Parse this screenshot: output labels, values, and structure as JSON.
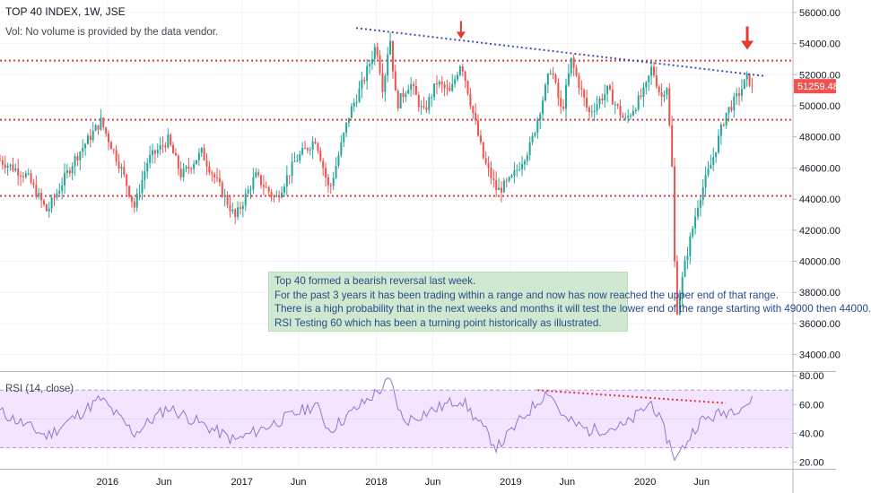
{
  "header": {
    "symbol_title": "TOP 40 INDEX, 1W, JSE",
    "volume_note": "Vol: No volume is provided by the data vendor."
  },
  "price_scale": {
    "ticks": [
      "56000.00",
      "54000.00",
      "52000.00",
      "50000.00",
      "48000.00",
      "46000.00",
      "44000.00",
      "42000.00",
      "40000.00",
      "38000.00",
      "36000.00",
      "34000.00"
    ],
    "last_price_label": "51259.48",
    "last_price": 51259.48,
    "colors": {
      "last_price_bg": "#ef5350"
    }
  },
  "rsi_panel": {
    "title": "RSI (14, close)",
    "ticks": [
      "80.00",
      "60.00",
      "40.00",
      "20.00"
    ],
    "band_upper": 70,
    "band_lower": 30,
    "colors": {
      "line": "#9575cd",
      "band": "#f3e5ff"
    }
  },
  "time_axis": {
    "labels": [
      "2016",
      "Jun",
      "2017",
      "Jun",
      "2018",
      "Jun",
      "2019",
      "Jun",
      "2020",
      "Jun"
    ]
  },
  "annotation": {
    "lines": [
      "Top 40 formed a bearish reversal last week.",
      "For the past 3 years it has been trading within a range and now has now reached the upper end of that range.",
      "There is a high probability that in the next weeks and months it will test the lower end of the range starting with 49000 then 44000.",
      "RSI Testing 60 which has been a turning point historically as illustrated."
    ]
  },
  "chart_data": {
    "type": "candlestick",
    "title": "TOP 40 INDEX, 1W, JSE",
    "ylim": [
      33000,
      56800
    ],
    "support_resistance_levels": [
      52900,
      49100,
      44200
    ],
    "descending_trendline": {
      "from": [
        2017.85,
        55000
      ],
      "to": [
        2020.9,
        51900
      ]
    },
    "rsi_trendline": {
      "from": [
        2019.2,
        70
      ],
      "to": [
        2020.6,
        61
      ]
    },
    "colors": {
      "up": "#26a69a",
      "down": "#ef5350",
      "levels": "#e53935",
      "trendline": "#3f51b5",
      "arrows": "#e53935"
    },
    "key_points": [
      {
        "t": 2015.2,
        "v": 46500
      },
      {
        "t": 2015.4,
        "v": 45500
      },
      {
        "t": 2015.55,
        "v": 43200
      },
      {
        "t": 2015.75,
        "v": 46500
      },
      {
        "t": 2015.95,
        "v": 49000
      },
      {
        "t": 2016.1,
        "v": 46000
      },
      {
        "t": 2016.2,
        "v": 43500
      },
      {
        "t": 2016.3,
        "v": 46500
      },
      {
        "t": 2016.45,
        "v": 47800
      },
      {
        "t": 2016.55,
        "v": 45500
      },
      {
        "t": 2016.7,
        "v": 47000
      },
      {
        "t": 2016.85,
        "v": 44500
      },
      {
        "t": 2016.95,
        "v": 42800
      },
      {
        "t": 2017.1,
        "v": 45500
      },
      {
        "t": 2017.25,
        "v": 44000
      },
      {
        "t": 2017.4,
        "v": 46500
      },
      {
        "t": 2017.55,
        "v": 47900
      },
      {
        "t": 2017.65,
        "v": 44500
      },
      {
        "t": 2017.8,
        "v": 49500
      },
      {
        "t": 2017.9,
        "v": 51500
      },
      {
        "t": 2018.0,
        "v": 54000
      },
      {
        "t": 2018.05,
        "v": 51000
      },
      {
        "t": 2018.1,
        "v": 54600
      },
      {
        "t": 2018.15,
        "v": 50000
      },
      {
        "t": 2018.25,
        "v": 51500
      },
      {
        "t": 2018.35,
        "v": 49500
      },
      {
        "t": 2018.45,
        "v": 51500
      },
      {
        "t": 2018.55,
        "v": 50800
      },
      {
        "t": 2018.63,
        "v": 52900
      },
      {
        "t": 2018.72,
        "v": 49500
      },
      {
        "t": 2018.8,
        "v": 46500
      },
      {
        "t": 2018.9,
        "v": 44500
      },
      {
        "t": 2019.0,
        "v": 45200
      },
      {
        "t": 2019.15,
        "v": 47500
      },
      {
        "t": 2019.3,
        "v": 52500
      },
      {
        "t": 2019.38,
        "v": 49500
      },
      {
        "t": 2019.45,
        "v": 52900
      },
      {
        "t": 2019.58,
        "v": 49500
      },
      {
        "t": 2019.72,
        "v": 51000
      },
      {
        "t": 2019.85,
        "v": 49000
      },
      {
        "t": 2020.0,
        "v": 51000
      },
      {
        "t": 2020.05,
        "v": 52500
      },
      {
        "t": 2020.12,
        "v": 50500
      },
      {
        "t": 2020.16,
        "v": 51500
      },
      {
        "t": 2020.2,
        "v": 46000
      },
      {
        "t": 2020.23,
        "v": 36500
      },
      {
        "t": 2020.3,
        "v": 40000
      },
      {
        "t": 2020.4,
        "v": 44000
      },
      {
        "t": 2020.5,
        "v": 46500
      },
      {
        "t": 2020.6,
        "v": 49500
      },
      {
        "t": 2020.68,
        "v": 50500
      },
      {
        "t": 2020.76,
        "v": 51800
      },
      {
        "t": 2020.8,
        "v": 51259
      }
    ],
    "rsi_key_points": [
      {
        "t": 2015.2,
        "v": 55
      },
      {
        "t": 2015.55,
        "v": 38
      },
      {
        "t": 2015.95,
        "v": 64
      },
      {
        "t": 2016.2,
        "v": 40
      },
      {
        "t": 2016.45,
        "v": 58
      },
      {
        "t": 2016.95,
        "v": 35
      },
      {
        "t": 2017.55,
        "v": 60
      },
      {
        "t": 2017.65,
        "v": 42
      },
      {
        "t": 2018.05,
        "v": 72
      },
      {
        "t": 2018.1,
        "v": 77
      },
      {
        "t": 2018.2,
        "v": 48
      },
      {
        "t": 2018.63,
        "v": 64
      },
      {
        "t": 2018.9,
        "v": 30
      },
      {
        "t": 2019.1,
        "v": 52
      },
      {
        "t": 2019.28,
        "v": 70
      },
      {
        "t": 2019.4,
        "v": 50
      },
      {
        "t": 2019.58,
        "v": 42
      },
      {
        "t": 2019.85,
        "v": 45
      },
      {
        "t": 2020.05,
        "v": 62
      },
      {
        "t": 2020.23,
        "v": 22
      },
      {
        "t": 2020.4,
        "v": 48
      },
      {
        "t": 2020.6,
        "v": 55
      },
      {
        "t": 2020.8,
        "v": 62
      }
    ]
  }
}
